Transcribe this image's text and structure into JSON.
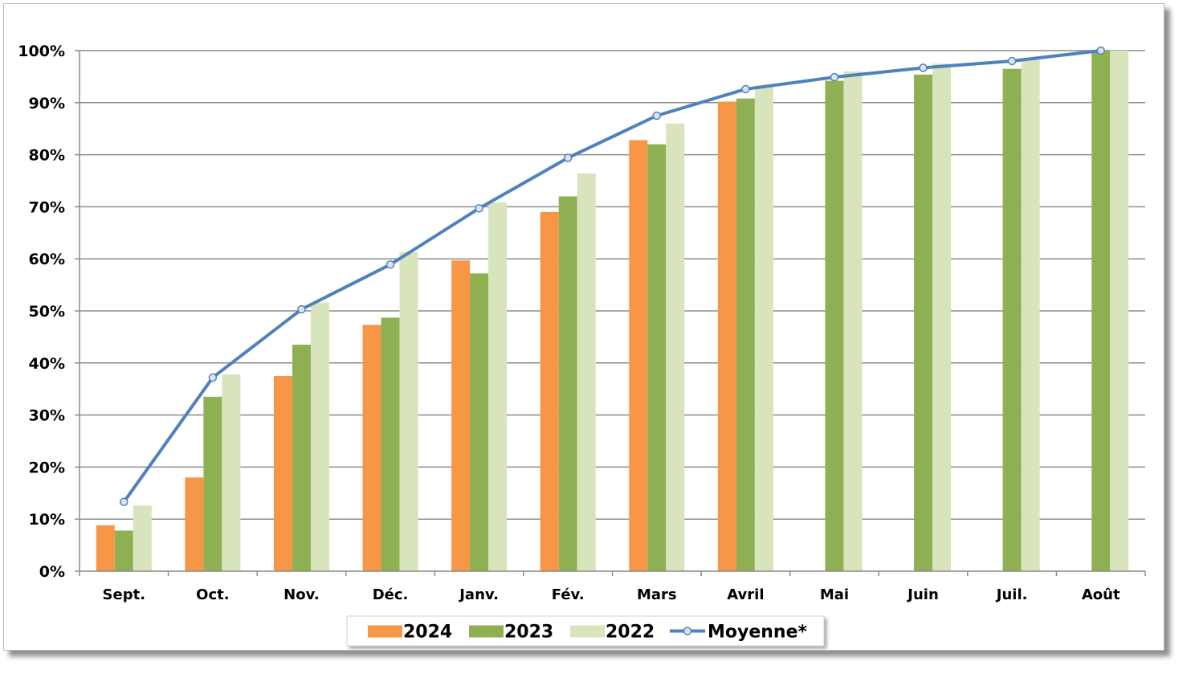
{
  "chart_data": {
    "type": "bar",
    "categories": [
      "Sept.",
      "Oct.",
      "Nov.",
      "Déc.",
      "Janv.",
      "Fév.",
      "Mars",
      "Avril",
      "Mai",
      "Juin",
      "Juil.",
      "Août"
    ],
    "series": [
      {
        "name": "2024",
        "kind": "bar",
        "color": "#f79646",
        "values": [
          8.8,
          18.0,
          37.5,
          47.3,
          59.7,
          69.0,
          82.8,
          90.2,
          null,
          null,
          null,
          null
        ]
      },
      {
        "name": "2023",
        "kind": "bar",
        "color": "#8fb052",
        "values": [
          7.8,
          33.5,
          43.5,
          48.7,
          57.2,
          72.0,
          82.0,
          90.8,
          94.2,
          95.4,
          96.5,
          100
        ]
      },
      {
        "name": "2022",
        "kind": "bar",
        "color": "#d8e4bc",
        "values": [
          12.6,
          37.8,
          51.6,
          61.3,
          70.8,
          76.4,
          86.0,
          93.3,
          96.0,
          97.5,
          98.5,
          100
        ]
      },
      {
        "name": "Moyenne*",
        "kind": "line",
        "color": "#4f81bd",
        "values": [
          13.3,
          37.2,
          50.3,
          58.9,
          69.7,
          79.4,
          87.5,
          92.6,
          94.9,
          96.7,
          98.0,
          100
        ]
      }
    ],
    "y_ticks": [
      "0%",
      "10%",
      "20%",
      "30%",
      "40%",
      "50%",
      "60%",
      "70%",
      "80%",
      "90%",
      "100%"
    ],
    "ylim": [
      0,
      100
    ],
    "y_unit": "%",
    "grid": true,
    "legend_position": "bottom"
  }
}
